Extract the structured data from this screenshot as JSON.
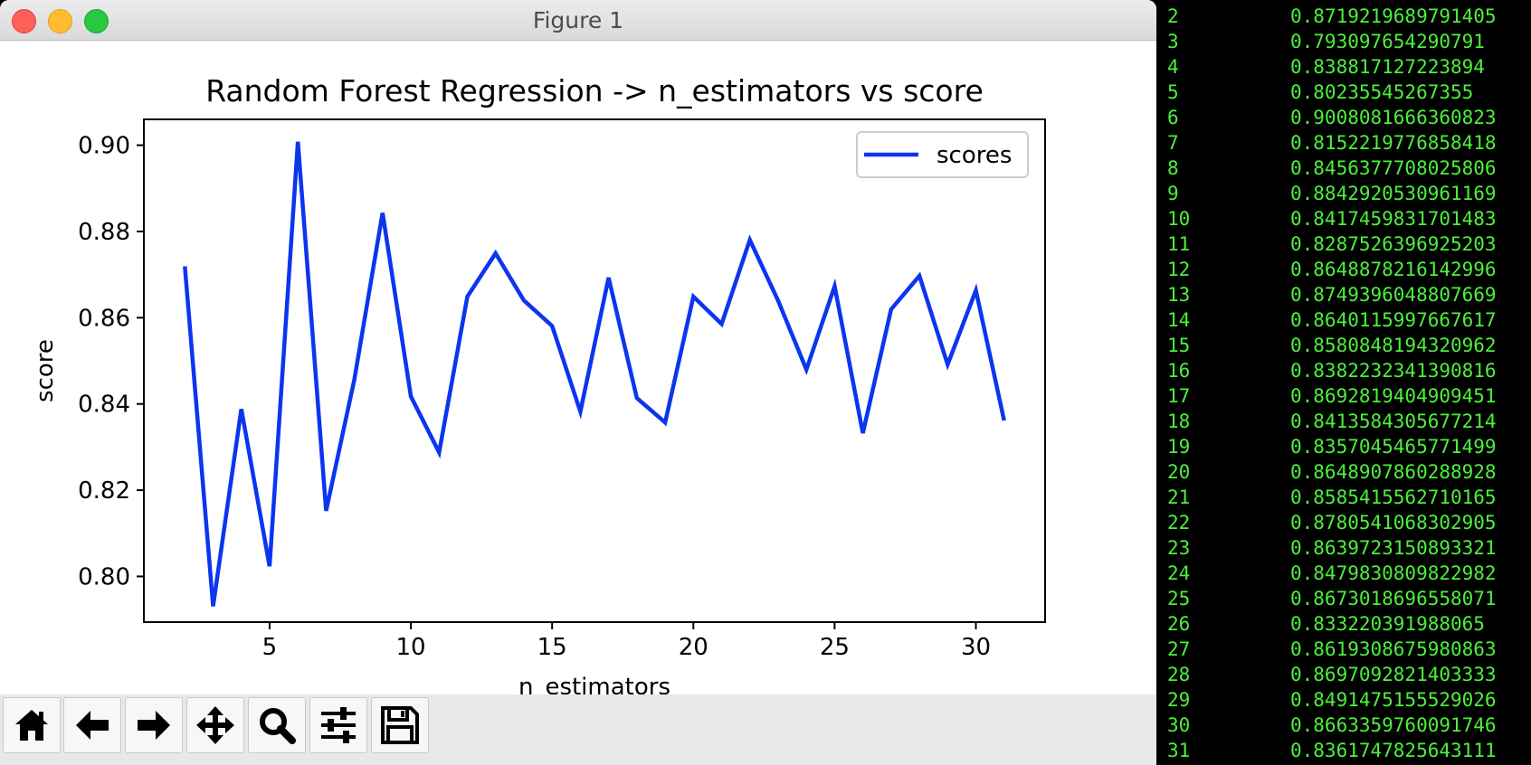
{
  "window": {
    "title": "Figure 1"
  },
  "colors": {
    "line": "#0c35f0",
    "terminal_text": "#4cf03c"
  },
  "toolbar": {
    "buttons": [
      {
        "name": "home-button",
        "icon": "home-icon"
      },
      {
        "name": "back-button",
        "icon": "arrow-left-icon"
      },
      {
        "name": "forward-button",
        "icon": "arrow-right-icon"
      },
      {
        "name": "pan-button",
        "icon": "move-icon"
      },
      {
        "name": "zoom-button",
        "icon": "search-icon"
      },
      {
        "name": "configure-subplots-button",
        "icon": "sliders-icon"
      },
      {
        "name": "save-button",
        "icon": "save-icon"
      }
    ]
  },
  "chart_data": {
    "type": "line",
    "title": "Random Forest Regression -> n_estimators vs score",
    "xlabel": "n_estimators",
    "ylabel": "score",
    "xlim": [
      0.55,
      32.45
    ],
    "ylim": [
      0.7894,
      0.906
    ],
    "xticks": [
      5,
      10,
      15,
      20,
      25,
      30
    ],
    "xtick_labels": [
      "5",
      "10",
      "15",
      "20",
      "25",
      "30"
    ],
    "yticks": [
      0.8,
      0.82,
      0.84,
      0.86,
      0.88,
      0.9
    ],
    "ytick_labels": [
      "0.80",
      "0.82",
      "0.84",
      "0.86",
      "0.88",
      "0.90"
    ],
    "legend": {
      "placement": "top-right",
      "entries": [
        "scores"
      ]
    },
    "grid": false,
    "series": [
      {
        "name": "scores",
        "x": [
          2,
          3,
          4,
          5,
          6,
          7,
          8,
          9,
          10,
          11,
          12,
          13,
          14,
          15,
          16,
          17,
          18,
          19,
          20,
          21,
          22,
          23,
          24,
          25,
          26,
          27,
          28,
          29,
          30,
          31
        ],
        "y": [
          0.8719219689791405,
          0.793097654290791,
          0.838817127223894,
          0.80235545267355,
          0.9008081666360823,
          0.8152219776858418,
          0.8456377708025806,
          0.8842920530961169,
          0.8417459831701483,
          0.8287526396925203,
          0.8648878216142996,
          0.8749396048807669,
          0.8640115997667617,
          0.8580848194320962,
          0.8382232341390816,
          0.8692819404909451,
          0.8413584305677214,
          0.8357045465771499,
          0.8648907860288928,
          0.8585415562710165,
          0.8780541068302905,
          0.8639723150893321,
          0.8479830809822982,
          0.8673018696558071,
          0.833220391988065,
          0.8619308675980863,
          0.8697092821403333,
          0.8491475155529026,
          0.8663359760091746,
          0.8361747825643111
        ]
      }
    ]
  },
  "terminal": {
    "rows": [
      {
        "n": "2",
        "v": "0.8719219689791405"
      },
      {
        "n": "3",
        "v": "0.793097654290791"
      },
      {
        "n": "4",
        "v": "0.838817127223894"
      },
      {
        "n": "5",
        "v": "0.80235545267355"
      },
      {
        "n": "6",
        "v": "0.9008081666360823"
      },
      {
        "n": "7",
        "v": "0.8152219776858418"
      },
      {
        "n": "8",
        "v": "0.8456377708025806"
      },
      {
        "n": "9",
        "v": "0.8842920530961169"
      },
      {
        "n": "10",
        "v": "0.8417459831701483"
      },
      {
        "n": "11",
        "v": "0.8287526396925203"
      },
      {
        "n": "12",
        "v": "0.8648878216142996"
      },
      {
        "n": "13",
        "v": "0.8749396048807669"
      },
      {
        "n": "14",
        "v": "0.8640115997667617"
      },
      {
        "n": "15",
        "v": "0.8580848194320962"
      },
      {
        "n": "16",
        "v": "0.8382232341390816"
      },
      {
        "n": "17",
        "v": "0.8692819404909451"
      },
      {
        "n": "18",
        "v": "0.8413584305677214"
      },
      {
        "n": "19",
        "v": "0.8357045465771499"
      },
      {
        "n": "20",
        "v": "0.8648907860288928"
      },
      {
        "n": "21",
        "v": "0.8585415562710165"
      },
      {
        "n": "22",
        "v": "0.8780541068302905"
      },
      {
        "n": "23",
        "v": "0.8639723150893321"
      },
      {
        "n": "24",
        "v": "0.8479830809822982"
      },
      {
        "n": "25",
        "v": "0.8673018696558071"
      },
      {
        "n": "26",
        "v": "0.833220391988065"
      },
      {
        "n": "27",
        "v": "0.8619308675980863"
      },
      {
        "n": "28",
        "v": "0.8697092821403333"
      },
      {
        "n": "29",
        "v": "0.8491475155529026"
      },
      {
        "n": "30",
        "v": "0.8663359760091746"
      },
      {
        "n": "31",
        "v": "0.8361747825643111"
      }
    ]
  }
}
